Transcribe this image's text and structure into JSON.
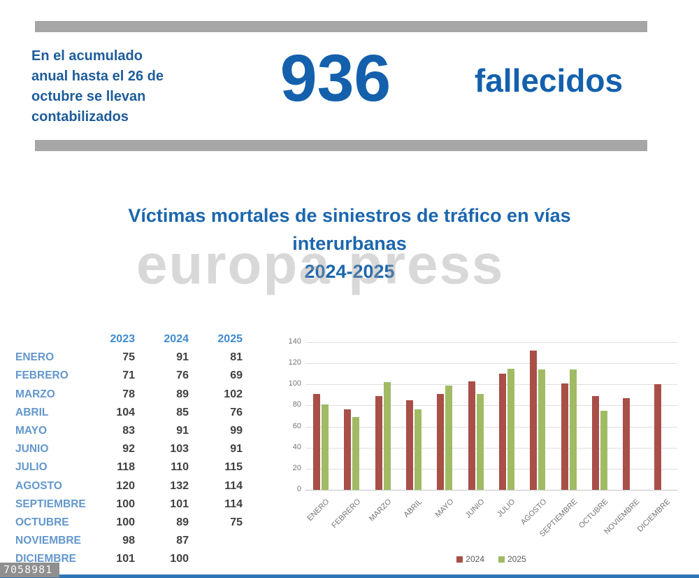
{
  "header": {
    "intro_lines": [
      "En el acumulado",
      "anual hasta el 26 de",
      "octubre se llevan",
      "contabilizados"
    ],
    "big_number": "936",
    "big_number_label": "fallecidos"
  },
  "title": {
    "line1": "Víctimas mortales de siniestros de tráfico en vías",
    "line2": "interurbanas",
    "line3": "2024-2025"
  },
  "watermark": {
    "text": "europa press",
    "photo_id": "7058981"
  },
  "table": {
    "headers": [
      "2023",
      "2024",
      "2025"
    ],
    "rows": [
      {
        "month": "ENERO",
        "y2023": "75",
        "y2024": "91",
        "y2025": "81"
      },
      {
        "month": "FEBRERO",
        "y2023": "71",
        "y2024": "76",
        "y2025": "69"
      },
      {
        "month": "MARZO",
        "y2023": "78",
        "y2024": "89",
        "y2025": "102"
      },
      {
        "month": "ABRIL",
        "y2023": "104",
        "y2024": "85",
        "y2025": "76"
      },
      {
        "month": "MAYO",
        "y2023": "83",
        "y2024": "91",
        "y2025": "99"
      },
      {
        "month": "JUNIO",
        "y2023": "92",
        "y2024": "103",
        "y2025": "91"
      },
      {
        "month": "JULIO",
        "y2023": "118",
        "y2024": "110",
        "y2025": "115"
      },
      {
        "month": "AGOSTO",
        "y2023": "120",
        "y2024": "132",
        "y2025": "114"
      },
      {
        "month": "SEPTIEMBRE",
        "y2023": "100",
        "y2024": "101",
        "y2025": "114"
      },
      {
        "month": "OCTUBRE",
        "y2023": "100",
        "y2024": "89",
        "y2025": "75"
      },
      {
        "month": "NOVIEMBRE",
        "y2023": "98",
        "y2024": "87",
        "y2025": ""
      },
      {
        "month": "DICIEMBRE",
        "y2023": "101",
        "y2024": "100",
        "y2025": ""
      }
    ]
  },
  "chart_data": {
    "type": "bar",
    "categories": [
      "ENERO",
      "FEBRERO",
      "MARZO",
      "ABRIL",
      "MAYO",
      "JUNIO",
      "JULIO",
      "AGOSTO",
      "SEPTIEMBRE",
      "OCTUBRE",
      "NOVIEMBRE",
      "DICIEMBRE"
    ],
    "series": [
      {
        "name": "2024",
        "color": "#A84F48",
        "values": [
          91,
          76,
          89,
          85,
          91,
          103,
          110,
          132,
          101,
          89,
          87,
          100
        ]
      },
      {
        "name": "2025",
        "color": "#A0BB64",
        "values": [
          81,
          69,
          102,
          76,
          99,
          91,
          115,
          114,
          114,
          75,
          null,
          null
        ]
      }
    ],
    "title": "Víctimas mortales de siniestros de tráfico en vías interurbanas 2024-2025",
    "xlabel": "",
    "ylabel": "",
    "ylim": [
      0,
      140
    ],
    "yticks": [
      0,
      20,
      40,
      60,
      80,
      100,
      120,
      140
    ],
    "grid": true,
    "legend_position": "bottom"
  },
  "colors": {
    "accent_blue": "#1460AC",
    "dark_blue_text": "#1E5C9A",
    "title_blue": "#1B66AE",
    "table_header_blue": "#3E8BD0",
    "table_month_blue": "#6397CC",
    "gray_bar": "#A6A6A6",
    "bar_red_2024": "#A84F48",
    "bar_green_2025": "#A0BB64",
    "bottom_bar_blue": "#2E74B5"
  }
}
